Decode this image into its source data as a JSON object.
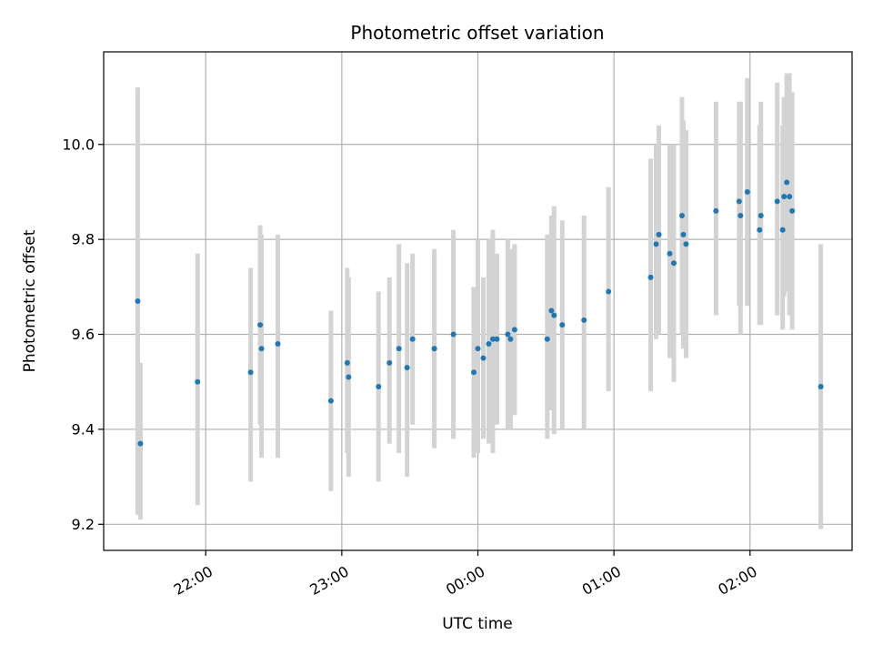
{
  "chart_data": {
    "type": "scatter",
    "title": "Photometric offset variation",
    "xlabel": "UTC time",
    "ylabel": "Photometric offset",
    "grid": true,
    "x_unit": "UTC time (hours past midnight; negative = preceding day)",
    "xlim": [
      -2.75,
      2.75
    ],
    "ylim": [
      9.145,
      10.195
    ],
    "x_ticks": [
      {
        "value": -2.0,
        "label": "22:00"
      },
      {
        "value": -1.0,
        "label": "23:00"
      },
      {
        "value": 0.0,
        "label": "00:00"
      },
      {
        "value": 1.0,
        "label": "01:00"
      },
      {
        "value": 2.0,
        "label": "02:00"
      }
    ],
    "y_ticks": [
      {
        "value": 9.2,
        "label": "9.2"
      },
      {
        "value": 9.4,
        "label": "9.4"
      },
      {
        "value": 9.6,
        "label": "9.6"
      },
      {
        "value": 9.8,
        "label": "9.8"
      },
      {
        "value": 10.0,
        "label": "10.0"
      }
    ],
    "colors": {
      "point": "#1f77b4",
      "errorbar": "#d3d3d3",
      "grid": "#b0b0b0"
    },
    "points": [
      {
        "x": -2.5,
        "y": 9.67,
        "lo": 9.22,
        "hi": 10.12
      },
      {
        "x": -2.48,
        "y": 9.37,
        "lo": 9.21,
        "hi": 9.54
      },
      {
        "x": -2.06,
        "y": 9.5,
        "lo": 9.24,
        "hi": 9.77
      },
      {
        "x": -1.67,
        "y": 9.52,
        "lo": 9.29,
        "hi": 9.74
      },
      {
        "x": -1.6,
        "y": 9.62,
        "lo": 9.41,
        "hi": 9.83
      },
      {
        "x": -1.59,
        "y": 9.57,
        "lo": 9.34,
        "hi": 9.81
      },
      {
        "x": -1.47,
        "y": 9.58,
        "lo": 9.34,
        "hi": 9.81
      },
      {
        "x": -1.08,
        "y": 9.46,
        "lo": 9.27,
        "hi": 9.65
      },
      {
        "x": -0.96,
        "y": 9.54,
        "lo": 9.35,
        "hi": 9.74
      },
      {
        "x": -0.95,
        "y": 9.51,
        "lo": 9.3,
        "hi": 9.72
      },
      {
        "x": -0.73,
        "y": 9.49,
        "lo": 9.29,
        "hi": 9.69
      },
      {
        "x": -0.65,
        "y": 9.54,
        "lo": 9.37,
        "hi": 9.72
      },
      {
        "x": -0.58,
        "y": 9.57,
        "lo": 9.35,
        "hi": 9.79
      },
      {
        "x": -0.52,
        "y": 9.53,
        "lo": 9.3,
        "hi": 9.75
      },
      {
        "x": -0.48,
        "y": 9.59,
        "lo": 9.41,
        "hi": 9.77
      },
      {
        "x": -0.32,
        "y": 9.57,
        "lo": 9.36,
        "hi": 9.78
      },
      {
        "x": -0.32,
        "y": 9.57,
        "lo": 9.37,
        "hi": 9.77
      },
      {
        "x": -0.18,
        "y": 9.6,
        "lo": 9.38,
        "hi": 9.82
      },
      {
        "x": -0.03,
        "y": 9.52,
        "lo": 9.34,
        "hi": 9.7
      },
      {
        "x": 0.0,
        "y": 9.57,
        "lo": 9.35,
        "hi": 9.8
      },
      {
        "x": 0.04,
        "y": 9.55,
        "lo": 9.38,
        "hi": 9.72
      },
      {
        "x": 0.08,
        "y": 9.58,
        "lo": 9.37,
        "hi": 9.8
      },
      {
        "x": 0.11,
        "y": 9.59,
        "lo": 9.35,
        "hi": 9.82
      },
      {
        "x": 0.14,
        "y": 9.59,
        "lo": 9.41,
        "hi": 9.77
      },
      {
        "x": 0.22,
        "y": 9.6,
        "lo": 9.4,
        "hi": 9.8
      },
      {
        "x": 0.24,
        "y": 9.59,
        "lo": 9.4,
        "hi": 9.78
      },
      {
        "x": 0.27,
        "y": 9.61,
        "lo": 9.43,
        "hi": 9.79
      },
      {
        "x": 0.51,
        "y": 9.59,
        "lo": 9.38,
        "hi": 9.81
      },
      {
        "x": 0.54,
        "y": 9.65,
        "lo": 9.44,
        "hi": 9.85
      },
      {
        "x": 0.56,
        "y": 9.64,
        "lo": 9.39,
        "hi": 9.87
      },
      {
        "x": 0.62,
        "y": 9.62,
        "lo": 9.4,
        "hi": 9.84
      },
      {
        "x": 0.78,
        "y": 9.63,
        "lo": 9.4,
        "hi": 9.85
      },
      {
        "x": 0.96,
        "y": 9.69,
        "lo": 9.48,
        "hi": 9.91
      },
      {
        "x": 1.27,
        "y": 9.72,
        "lo": 9.48,
        "hi": 9.97
      },
      {
        "x": 1.31,
        "y": 9.79,
        "lo": 9.59,
        "hi": 10.0
      },
      {
        "x": 1.33,
        "y": 9.81,
        "lo": 9.6,
        "hi": 10.04
      },
      {
        "x": 1.41,
        "y": 9.77,
        "lo": 9.55,
        "hi": 10.0
      },
      {
        "x": 1.44,
        "y": 9.75,
        "lo": 9.5,
        "hi": 10.0
      },
      {
        "x": 1.5,
        "y": 9.85,
        "lo": 9.6,
        "hi": 10.1
      },
      {
        "x": 1.51,
        "y": 9.81,
        "lo": 9.57,
        "hi": 10.05
      },
      {
        "x": 1.53,
        "y": 9.79,
        "lo": 9.55,
        "hi": 10.03
      },
      {
        "x": 1.75,
        "y": 9.86,
        "lo": 9.64,
        "hi": 10.09
      },
      {
        "x": 1.92,
        "y": 9.88,
        "lo": 9.66,
        "hi": 10.09
      },
      {
        "x": 1.93,
        "y": 9.85,
        "lo": 9.6,
        "hi": 10.09
      },
      {
        "x": 1.98,
        "y": 9.9,
        "lo": 9.66,
        "hi": 10.14
      },
      {
        "x": 2.07,
        "y": 9.82,
        "lo": 9.62,
        "hi": 10.04
      },
      {
        "x": 2.08,
        "y": 9.85,
        "lo": 9.62,
        "hi": 10.09
      },
      {
        "x": 2.2,
        "y": 9.88,
        "lo": 9.64,
        "hi": 10.13
      },
      {
        "x": 2.24,
        "y": 9.82,
        "lo": 9.61,
        "hi": 10.04
      },
      {
        "x": 2.25,
        "y": 9.89,
        "lo": 9.68,
        "hi": 10.1
      },
      {
        "x": 2.27,
        "y": 9.92,
        "lo": 9.69,
        "hi": 10.15
      },
      {
        "x": 2.29,
        "y": 9.89,
        "lo": 9.64,
        "hi": 10.15
      },
      {
        "x": 2.31,
        "y": 9.86,
        "lo": 9.61,
        "hi": 10.11
      },
      {
        "x": 2.52,
        "y": 9.49,
        "lo": 9.19,
        "hi": 9.79
      }
    ]
  }
}
